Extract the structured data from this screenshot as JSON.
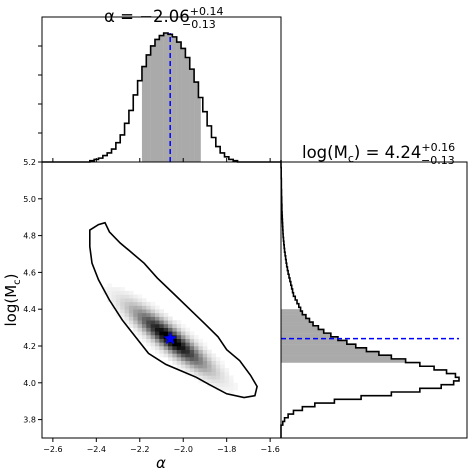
{
  "chart_data": [
    {
      "type": "histogram-step",
      "panel": "top-marginal",
      "title": {
        "base": "α = −2.06",
        "sup": "+0.14",
        "sub": "−0.13"
      },
      "bin_edges": [
        -2.43,
        -2.41,
        -2.39,
        -2.37,
        -2.35,
        -2.33,
        -2.31,
        -2.29,
        -2.27,
        -2.25,
        -2.23,
        -2.21,
        -2.19,
        -2.17,
        -2.15,
        -2.13,
        -2.11,
        -2.09,
        -2.07,
        -2.05,
        -2.03,
        -2.01,
        -1.99,
        -1.97,
        -1.95,
        -1.93,
        -1.91,
        -1.89,
        -1.87,
        -1.85,
        -1.83,
        -1.81,
        -1.79,
        -1.77,
        -1.75,
        -1.73,
        -1.71
      ],
      "counts": [
        0.01,
        0.02,
        0.03,
        0.05,
        0.07,
        0.1,
        0.15,
        0.21,
        0.3,
        0.4,
        0.52,
        0.63,
        0.74,
        0.83,
        0.9,
        0.95,
        0.98,
        1.0,
        0.99,
        0.97,
        0.93,
        0.88,
        0.81,
        0.72,
        0.62,
        0.5,
        0.39,
        0.28,
        0.19,
        0.12,
        0.07,
        0.04,
        0.02,
        0.01,
        0.0,
        0.0
      ],
      "credible_interval": [
        -2.19,
        -1.92
      ],
      "median": -2.06,
      "xlim": [
        -2.65,
        -1.55
      ]
    },
    {
      "type": "histogram-step",
      "orientation": "horizontal",
      "panel": "right-marginal",
      "title": {
        "base": "log(M",
        "sub_c": "c",
        "mid": ")  = 4.24",
        "sup": "+0.16",
        "sub": "−0.13"
      },
      "bin_edges": [
        3.77,
        3.79,
        3.81,
        3.83,
        3.85,
        3.87,
        3.89,
        3.91,
        3.93,
        3.95,
        3.97,
        3.99,
        4.01,
        4.03,
        4.05,
        4.07,
        4.09,
        4.11,
        4.13,
        4.15,
        4.17,
        4.19,
        4.21,
        4.23,
        4.25,
        4.27,
        4.29,
        4.31,
        4.33,
        4.35,
        4.37,
        4.39,
        4.41,
        4.43,
        4.45,
        4.47,
        4.49,
        4.51,
        4.53,
        4.55,
        4.57,
        4.59,
        4.61,
        4.63,
        4.65,
        4.67,
        4.69,
        4.71,
        4.73,
        4.75,
        4.77,
        4.79,
        4.81,
        4.83,
        4.85,
        4.87,
        4.89,
        4.91,
        4.93,
        4.95,
        4.97,
        4.99,
        5.01,
        5.03,
        5.05,
        5.07,
        5.09,
        5.11,
        5.13,
        5.15,
        5.17,
        5.19,
        5.21
      ],
      "counts": [
        0.01,
        0.02,
        0.04,
        0.07,
        0.12,
        0.19,
        0.3,
        0.45,
        0.62,
        0.78,
        0.9,
        0.97,
        1.0,
        0.98,
        0.93,
        0.86,
        0.78,
        0.7,
        0.62,
        0.55,
        0.48,
        0.42,
        0.37,
        0.32,
        0.28,
        0.24,
        0.21,
        0.18,
        0.16,
        0.14,
        0.12,
        0.11,
        0.1,
        0.09,
        0.08,
        0.07,
        0.065,
        0.06,
        0.055,
        0.05,
        0.045,
        0.04,
        0.036,
        0.032,
        0.029,
        0.026,
        0.023,
        0.02,
        0.018,
        0.016,
        0.014,
        0.012,
        0.011,
        0.01,
        0.009,
        0.008,
        0.007,
        0.006,
        0.005,
        0.005,
        0.004,
        0.004,
        0.003,
        0.003,
        0.002,
        0.002,
        0.002,
        0.001,
        0.001,
        0.001,
        0.0,
        0.0
      ],
      "credible_interval": [
        4.11,
        4.4
      ],
      "median": 4.24,
      "ylim": [
        3.7,
        5.2
      ]
    },
    {
      "type": "heatmap",
      "panel": "joint",
      "xlabel": "α",
      "ylabel": {
        "base": "log(M",
        "sub": "c",
        "end": ")"
      },
      "xlim": [
        -2.65,
        -1.55
      ],
      "ylim": [
        3.7,
        5.2
      ],
      "xticks": [
        -2.6,
        -2.4,
        -2.2,
        -2.0,
        -1.8,
        -1.6
      ],
      "xtick_labels": [
        "−2.6",
        "−2.4",
        "−2.2",
        "−2.0",
        "−1.8",
        "−1.6"
      ],
      "yticks": [
        3.8,
        4.0,
        4.2,
        4.4,
        4.6,
        4.8,
        5.0,
        5.2
      ],
      "ytick_labels": [
        "3.8",
        "4.0",
        "4.2",
        "4.4",
        "4.6",
        "4.8",
        "5.0",
        "5.2"
      ],
      "density_model": {
        "center": [
          -2.06,
          4.24
        ],
        "sigma_x": 0.115,
        "sigma_y": 0.11,
        "correlation": -0.9
      },
      "contour": [
        [
          -2.43,
          4.83
        ],
        [
          -2.39,
          4.86
        ],
        [
          -2.36,
          4.87
        ],
        [
          -2.34,
          4.82
        ],
        [
          -2.29,
          4.76
        ],
        [
          -2.25,
          4.72
        ],
        [
          -2.18,
          4.65
        ],
        [
          -2.12,
          4.57
        ],
        [
          -2.04,
          4.48
        ],
        [
          -1.97,
          4.4
        ],
        [
          -1.9,
          4.32
        ],
        [
          -1.84,
          4.25
        ],
        [
          -1.8,
          4.18
        ],
        [
          -1.74,
          4.12
        ],
        [
          -1.69,
          4.04
        ],
        [
          -1.66,
          3.98
        ],
        [
          -1.67,
          3.93
        ],
        [
          -1.72,
          3.92
        ],
        [
          -1.8,
          3.94
        ],
        [
          -1.88,
          3.99
        ],
        [
          -1.94,
          4.03
        ],
        [
          -2.0,
          4.06
        ],
        [
          -2.08,
          4.1
        ],
        [
          -2.16,
          4.16
        ],
        [
          -2.22,
          4.25
        ],
        [
          -2.28,
          4.34
        ],
        [
          -2.34,
          4.45
        ],
        [
          -2.39,
          4.56
        ],
        [
          -2.42,
          4.65
        ],
        [
          -2.43,
          4.74
        ]
      ],
      "best_fit_point": [
        -2.06,
        4.24
      ],
      "colors": {
        "contour": "#000000",
        "marker": "#0000ff",
        "median_line": "#0000ff",
        "interval_fill": "#aaaaaa"
      }
    }
  ]
}
